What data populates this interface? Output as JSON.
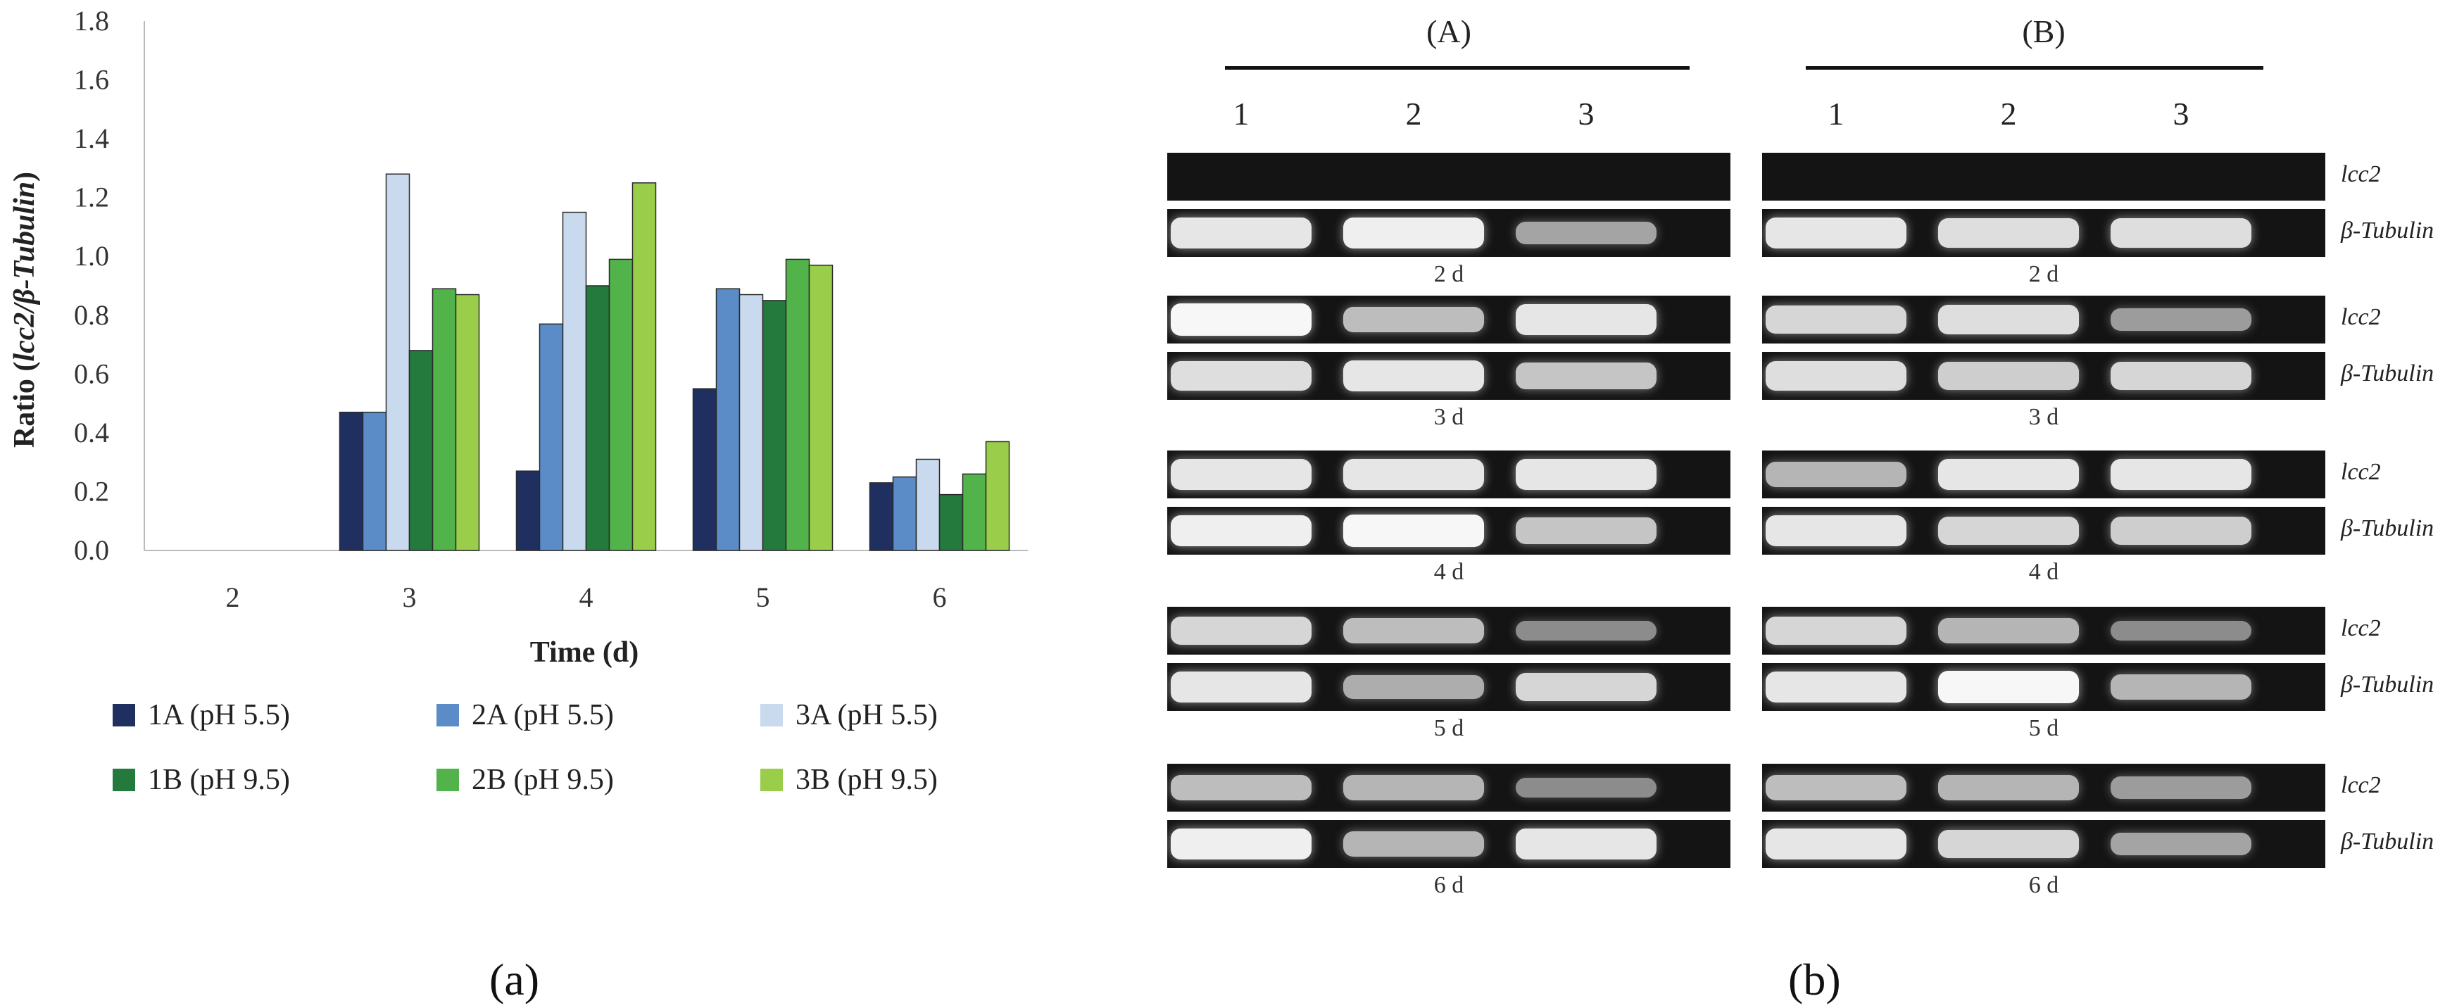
{
  "chart_data": {
    "type": "bar",
    "ylabel_prefix": "Ratio (",
    "ylabel_italic": "lcc2/β-Tubulin",
    "ylabel_suffix": ")",
    "xlabel": "Time (d)",
    "categories": [
      "2",
      "3",
      "4",
      "5",
      "6"
    ],
    "ylim": [
      0,
      1.8
    ],
    "yticks": [
      "0.0",
      "0.2",
      "0.4",
      "0.6",
      "0.8",
      "1.0",
      "1.2",
      "1.4",
      "1.6",
      "1.8"
    ],
    "legend_placement": "bottom",
    "series": [
      {
        "name": "1A (pH 5.5)",
        "color": "#1f2f5f",
        "values": [
          0,
          0.47,
          0.27,
          0.55,
          0.23
        ]
      },
      {
        "name": "2A (pH 5.5)",
        "color": "#5b8cc8",
        "values": [
          0,
          0.47,
          0.77,
          0.89,
          0.25
        ]
      },
      {
        "name": "3A (pH 5.5)",
        "color": "#c9d9ee",
        "values": [
          0,
          1.28,
          1.15,
          0.87,
          0.31
        ]
      },
      {
        "name": "1B (pH 9.5)",
        "color": "#237a3c",
        "values": [
          0,
          0.68,
          0.9,
          0.85,
          0.19
        ]
      },
      {
        "name": "2B (pH 9.5)",
        "color": "#52b34b",
        "values": [
          0,
          0.89,
          0.99,
          0.99,
          0.26
        ]
      },
      {
        "name": "3B (pH 9.5)",
        "color": "#9acd4a",
        "values": [
          0,
          0.87,
          1.25,
          0.97,
          0.37
        ]
      }
    ]
  },
  "panel_a_label": "(a)",
  "panel_b_label": "(b)",
  "gel": {
    "groups": [
      "(A)",
      "(B)"
    ],
    "lanes": [
      "1",
      "2",
      "3"
    ],
    "gene_names": {
      "lcc2": "lcc2",
      "tubulin": "β-Tubulin"
    },
    "rows": [
      {
        "day": "2 d",
        "lcc2": [
          [
            0,
            0,
            0
          ],
          [
            0,
            0,
            0
          ]
        ],
        "tubulin": [
          [
            0.85,
            0.9,
            0.45
          ],
          [
            0.85,
            0.8,
            0.8
          ]
        ]
      },
      {
        "day": "3 d",
        "lcc2": [
          [
            0.95,
            0.6,
            0.85
          ],
          [
            0.75,
            0.8,
            0.4
          ]
        ],
        "tubulin": [
          [
            0.8,
            0.85,
            0.65
          ],
          [
            0.8,
            0.7,
            0.75
          ]
        ]
      },
      {
        "day": "4 d",
        "lcc2": [
          [
            0.85,
            0.85,
            0.85
          ],
          [
            0.55,
            0.85,
            0.85
          ]
        ],
        "tubulin": [
          [
            0.9,
            0.95,
            0.65
          ],
          [
            0.85,
            0.75,
            0.7
          ]
        ]
      },
      {
        "day": "5 d",
        "lcc2": [
          [
            0.75,
            0.6,
            0.3
          ],
          [
            0.75,
            0.55,
            0.3
          ]
        ],
        "tubulin": [
          [
            0.85,
            0.5,
            0.75
          ],
          [
            0.85,
            0.95,
            0.55
          ]
        ]
      },
      {
        "day": "6 d",
        "lcc2": [
          [
            0.6,
            0.55,
            0.3
          ],
          [
            0.6,
            0.55,
            0.4
          ]
        ],
        "tubulin": [
          [
            0.9,
            0.55,
            0.85
          ],
          [
            0.85,
            0.75,
            0.45
          ]
        ]
      }
    ]
  }
}
